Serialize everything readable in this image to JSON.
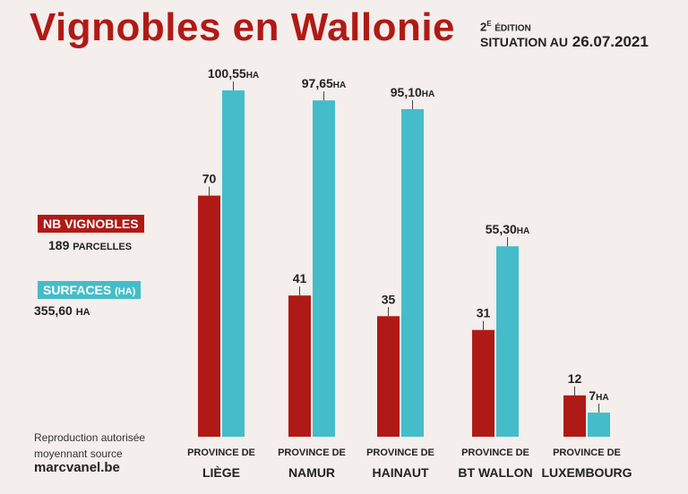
{
  "header": {
    "title": "Vignobles en Wallonie",
    "edition_number": "2",
    "edition_suffix": "E",
    "edition_word": "ÉDITION",
    "situation_label": "SITUATION AU",
    "situation_date": "26.07.2021"
  },
  "legend": {
    "vineyards_label": "NB VIGNOBLES",
    "vineyards_total": "189",
    "vineyards_unit": "PARCELLES",
    "surface_label": "SURFACES",
    "surface_label_unit": "(HA)",
    "surface_total": "355,60",
    "surface_unit": "HA"
  },
  "footer": {
    "reproduction_line1": "Reproduction autorisée",
    "reproduction_line2": "moyennant source",
    "site": "marcvanel.be"
  },
  "colors": {
    "red": "#b01a16",
    "cyan": "#45bcc9",
    "background": "#f4eeec"
  },
  "chart_data": {
    "type": "bar",
    "title": "Vignobles en Wallonie",
    "categories": [
      {
        "prefix": "PROVINCE DE",
        "name": "LIÈGE"
      },
      {
        "prefix": "PROVINCE DE",
        "name": "NAMUR"
      },
      {
        "prefix": "PROVINCE DE",
        "name": "HAINAUT"
      },
      {
        "prefix": "PROVINCE DE",
        "name": "BT WALLON"
      },
      {
        "prefix": "PROVINCE DE",
        "name": "LUXEMBOURG"
      }
    ],
    "series": [
      {
        "name": "NB VIGNOBLES",
        "color": "#b01a16",
        "values": [
          70,
          41,
          35,
          31,
          12
        ],
        "labels": [
          "70",
          "41",
          "35",
          "31",
          "12"
        ],
        "label_units": [
          "",
          "",
          "",
          "",
          ""
        ]
      },
      {
        "name": "SURFACES (HA)",
        "color": "#45bcc9",
        "values": [
          100.55,
          97.65,
          95.1,
          55.3,
          7
        ],
        "labels": [
          "100,55",
          "97,65",
          "95,10",
          "55,30",
          "7"
        ],
        "label_units": [
          "HA",
          "HA",
          "HA",
          "HA",
          "HA"
        ]
      }
    ],
    "legend_position": "left",
    "grid": false
  }
}
